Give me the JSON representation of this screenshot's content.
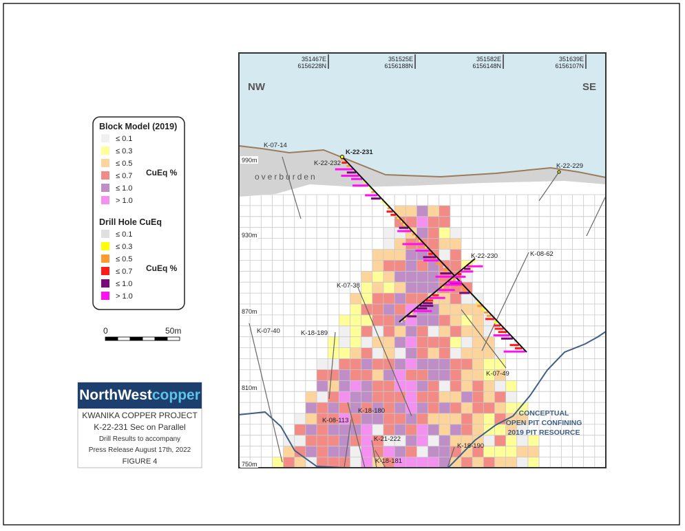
{
  "section": {
    "compass": [
      "NW",
      "SE"
    ],
    "coordinates": [
      {
        "easting": "351467E",
        "northing": "6156228N"
      },
      {
        "easting": "351525E",
        "northing": "6156188N"
      },
      {
        "easting": "351582E",
        "northing": "6156148N"
      },
      {
        "easting": "351639E",
        "northing": "6156107N"
      }
    ],
    "elevations": [
      "990m",
      "930m",
      "870m",
      "810m",
      "750m"
    ],
    "overburden": "overburden",
    "drill_holes": [
      "K-07-14",
      "K-22-232",
      "K-22-231",
      "K-22-229",
      "K-22-230",
      "K-08-62",
      "K-07-38",
      "K-18-189",
      "K-07-40",
      "K-07-49",
      "K-18-180",
      "K-08-113",
      "K-21-222",
      "K-18-181",
      "K-18-190"
    ],
    "pit_label": [
      "CONCEPTUAL",
      "OPEN PIT CONFINING",
      "2019 PIT RESOURCE"
    ]
  },
  "legend": {
    "block_model": {
      "title": "Block Model (2019)",
      "classes": [
        "≤ 0.1",
        "≤ 0.3",
        "≤ 0.5",
        "≤ 0.7",
        "≤ 1.0",
        "> 1.0"
      ],
      "unit": "CuEq %"
    },
    "drill_hole": {
      "title": "Drill Hole CuEq",
      "classes": [
        "≤ 0.1",
        "≤ 0.3",
        "≤ 0.5",
        "≤ 0.7",
        "≤ 1.0",
        "> 1.0"
      ],
      "unit": "CuEq %"
    }
  },
  "scale_bar": {
    "labels": [
      "0",
      "50m"
    ]
  },
  "title_block": {
    "logo": [
      "NorthWest",
      "copper"
    ],
    "lines": [
      "KWANIKA COPPER PROJECT",
      "K-22-231 Sec on Parallel",
      "Drill Results to accompany",
      "Press Release August 17th, 2022",
      "FIGURE 4"
    ]
  }
}
